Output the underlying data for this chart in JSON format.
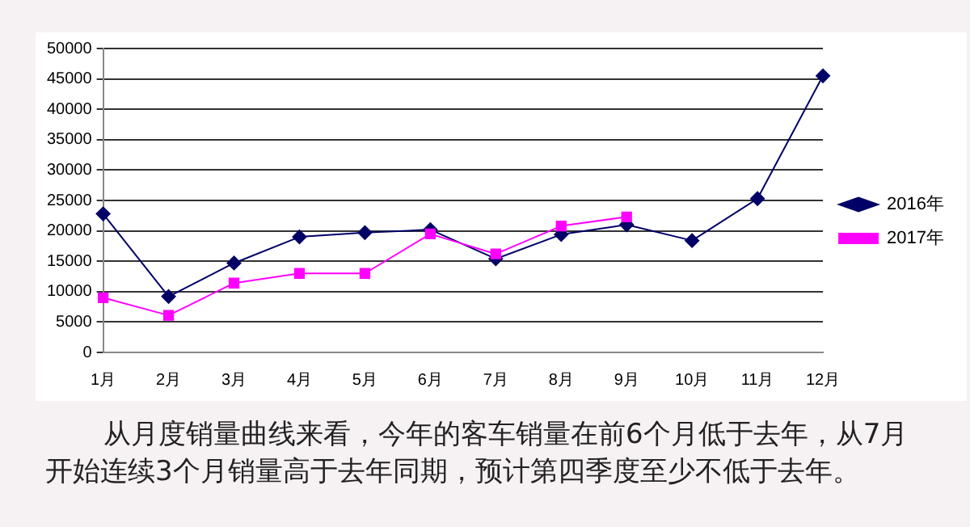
{
  "chart_data": {
    "type": "line",
    "categories": [
      "1月",
      "2月",
      "3月",
      "4月",
      "5月",
      "6月",
      "7月",
      "8月",
      "9月",
      "10月",
      "11月",
      "12月"
    ],
    "series": [
      {
        "name": "2016年",
        "color": "#000066",
        "marker": "diamond",
        "values": [
          22800,
          9200,
          14700,
          19000,
          19700,
          20200,
          15400,
          19400,
          21000,
          18400,
          25300,
          45500
        ]
      },
      {
        "name": "2017年",
        "color": "#ff00ff",
        "marker": "square",
        "values": [
          9000,
          6100,
          11400,
          13000,
          13000,
          19500,
          16200,
          20800,
          22300,
          null,
          null,
          null
        ]
      }
    ],
    "ylim": [
      0,
      50000
    ],
    "yticks": [
      0,
      5000,
      10000,
      15000,
      20000,
      25000,
      30000,
      35000,
      40000,
      45000,
      50000
    ],
    "grid": "y",
    "legend": "right",
    "annotations": [
      "从月度销量曲线来看，今年的客车销量在前6个月低于去年，从7月开始连续3个月销量高于去年同期，预计第四季度至少不低于去年。"
    ]
  }
}
